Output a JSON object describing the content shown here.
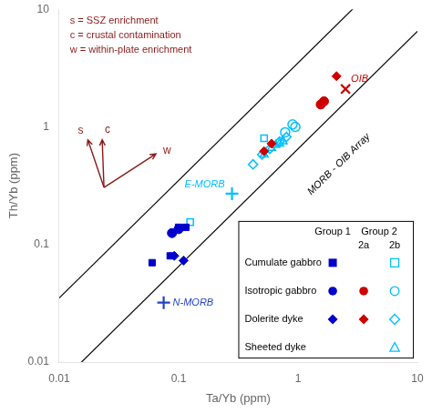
{
  "chart_data": {
    "type": "scatter",
    "xlabel": "Ta/Yb (ppm)",
    "ylabel": "Th/Yb (ppm)",
    "log": true,
    "xlim": [
      0.01,
      10
    ],
    "ylim": [
      0.01,
      10
    ],
    "xticks": [
      0.01,
      0.1,
      1,
      10
    ],
    "yticks": [
      0.01,
      0.1,
      1,
      10
    ],
    "grid": false,
    "legend": "lower right",
    "group_headers": [
      {
        "text": "Group 2",
        "groups": [
          "2a",
          "2b"
        ]
      }
    ],
    "lines": [
      {
        "slope": 3.5,
        "color": "#000000"
      },
      {
        "slope": 0.65,
        "color": "#000000"
      }
    ],
    "band_label": {
      "text": "MORB - OIB Array",
      "x": 2.2,
      "y": 0.48
    },
    "series": [
      {
        "name": "Cumulate gabbro",
        "group": "Group 1",
        "color": "#0000CC",
        "marker": "square",
        "values": [
          [
            0.06,
            0.07
          ],
          [
            0.085,
            0.08
          ],
          [
            0.1,
            0.14
          ],
          [
            0.115,
            0.14
          ]
        ]
      },
      {
        "name": "Isotropic gabbro",
        "group": "Group 1",
        "color": "#0000CC",
        "marker": "circle",
        "values": [
          [
            0.1,
            0.135
          ],
          [
            0.088,
            0.125
          ]
        ]
      },
      {
        "name": "Dolerite dyke",
        "group": "Group 1",
        "color": "#0000CC",
        "marker": "diamond",
        "values": [
          [
            0.092,
            0.08
          ],
          [
            0.11,
            0.073
          ]
        ]
      },
      {
        "name": "Isotropic gabbro",
        "group": "2a",
        "color": "#CC0000",
        "marker": "circle",
        "values": [
          [
            1.55,
            1.55
          ],
          [
            1.65,
            1.65
          ]
        ]
      },
      {
        "name": "Dolerite dyke",
        "group": "2a",
        "color": "#CC0000",
        "marker": "diamond",
        "values": [
          [
            0.52,
            0.62
          ],
          [
            0.6,
            0.72
          ]
        ]
      },
      {
        "name": "Cumulate gabbro",
        "group": "2b",
        "color": "#00BFFF",
        "marker": "open_square",
        "values": [
          [
            0.125,
            0.155
          ],
          [
            0.52,
            0.8
          ]
        ]
      },
      {
        "name": "Isotropic gabbro",
        "group": "2b",
        "color": "#00BFFF",
        "marker": "open_circle",
        "values": [
          [
            0.78,
            0.9
          ],
          [
            0.9,
            1.05
          ],
          [
            0.95,
            1.0
          ]
        ]
      },
      {
        "name": "Dolerite dyke",
        "group": "2b",
        "color": "#00BFFF",
        "marker": "open_diamond",
        "values": [
          [
            0.42,
            0.48
          ],
          [
            0.5,
            0.58
          ],
          [
            0.58,
            0.65
          ],
          [
            0.7,
            0.75
          ],
          [
            0.8,
            0.82
          ]
        ]
      },
      {
        "name": "Sheeted dyke",
        "group": "2b",
        "color": "#00BFFF",
        "marker": "open_triangle",
        "values": [
          [
            0.52,
            0.58
          ],
          [
            0.6,
            0.66
          ],
          [
            0.65,
            0.7
          ],
          [
            0.7,
            0.72
          ],
          [
            0.75,
            0.75
          ]
        ]
      },
      {
        "name": "N-MORB",
        "color": "#2244BB",
        "marker": "plus",
        "values": [
          [
            0.075,
            0.032
          ]
        ]
      },
      {
        "name": "E-MORB",
        "color": "#00BFFF",
        "marker": "plus",
        "values": [
          [
            0.28,
            0.27
          ]
        ]
      },
      {
        "name": "OIB",
        "color": "#CC0000",
        "marker": "x",
        "values": [
          [
            2.5,
            2.1
          ]
        ]
      },
      {
        "color": "#CC0000",
        "marker": "diamond",
        "values": [
          [
            2.1,
            2.7
          ]
        ]
      }
    ],
    "arrows": {
      "labels": [
        "s",
        "c",
        "w"
      ],
      "color": "#8B1A1A"
    },
    "note": {
      "lines": [
        "s = SSZ enrichment",
        "c = crustal contamination",
        "w = within-plate enrichment"
      ],
      "color": "#8B1A1A"
    }
  }
}
